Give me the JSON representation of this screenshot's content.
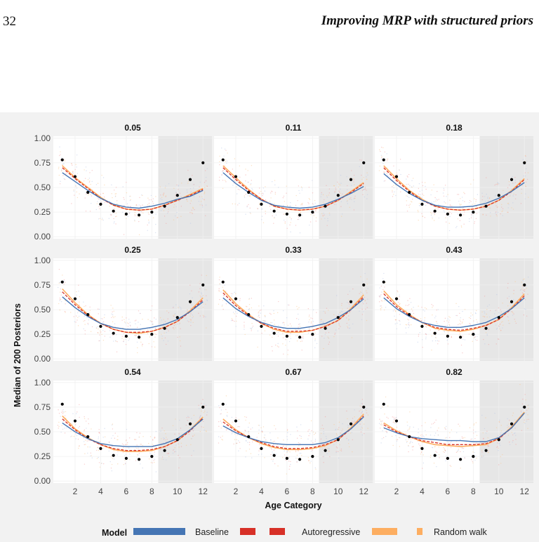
{
  "header": {
    "page_number": "32",
    "running_title": "Improving MRP with structured priors"
  },
  "figure": {
    "ylabel": "Median of 200 Posteriors",
    "xlabel": "Age Category",
    "legend_title": "Model"
  },
  "chart_data": {
    "type": "line",
    "panel_titles": [
      "0.05",
      "0.11",
      "0.18",
      "0.25",
      "0.33",
      "0.43",
      "0.54",
      "0.67",
      "0.82"
    ],
    "x": [
      1,
      2,
      3,
      4,
      5,
      6,
      7,
      8,
      9,
      10,
      11,
      12
    ],
    "xlim": [
      0.3,
      12.7
    ],
    "ylim": [
      -0.02,
      1.02
    ],
    "x_ticks": [
      2,
      4,
      6,
      8,
      10,
      12
    ],
    "y_ticks": [
      "0.00",
      "0.25",
      "0.50",
      "0.75",
      "1.00"
    ],
    "shaded_x_range": [
      8.5,
      12.7
    ],
    "truth_points": [
      0.78,
      0.61,
      0.45,
      0.33,
      0.26,
      0.23,
      0.22,
      0.25,
      0.31,
      0.42,
      0.58,
      0.75
    ],
    "series_colors": {
      "Baseline": "#4575b4",
      "Autoregressive": "#d73027",
      "Random walk": "#fdae61"
    },
    "legend_entries": [
      "Baseline",
      "Autoregressive",
      "Random walk"
    ],
    "panels": [
      {
        "title": "0.05",
        "baseline": [
          0.65,
          0.56,
          0.47,
          0.39,
          0.33,
          0.3,
          0.29,
          0.31,
          0.34,
          0.38,
          0.41,
          0.47
        ],
        "autoregressive": [
          0.7,
          0.59,
          0.49,
          0.39,
          0.32,
          0.28,
          0.27,
          0.28,
          0.32,
          0.37,
          0.42,
          0.48
        ],
        "random_walk": [
          0.72,
          0.6,
          0.5,
          0.4,
          0.32,
          0.28,
          0.27,
          0.28,
          0.32,
          0.37,
          0.43,
          0.49
        ]
      },
      {
        "title": "0.11",
        "baseline": [
          0.65,
          0.54,
          0.45,
          0.37,
          0.32,
          0.3,
          0.29,
          0.3,
          0.33,
          0.38,
          0.44,
          0.51
        ],
        "autoregressive": [
          0.7,
          0.58,
          0.47,
          0.38,
          0.31,
          0.28,
          0.27,
          0.28,
          0.31,
          0.37,
          0.45,
          0.54
        ],
        "random_walk": [
          0.72,
          0.6,
          0.48,
          0.38,
          0.31,
          0.28,
          0.27,
          0.28,
          0.31,
          0.37,
          0.46,
          0.55
        ]
      },
      {
        "title": "0.18",
        "baseline": [
          0.64,
          0.53,
          0.44,
          0.37,
          0.32,
          0.3,
          0.3,
          0.31,
          0.34,
          0.39,
          0.46,
          0.55
        ],
        "autoregressive": [
          0.7,
          0.57,
          0.46,
          0.37,
          0.31,
          0.28,
          0.27,
          0.28,
          0.31,
          0.37,
          0.46,
          0.58
        ],
        "random_walk": [
          0.72,
          0.59,
          0.47,
          0.38,
          0.31,
          0.28,
          0.27,
          0.28,
          0.31,
          0.37,
          0.47,
          0.59
        ]
      },
      {
        "title": "0.25",
        "baseline": [
          0.63,
          0.52,
          0.43,
          0.36,
          0.32,
          0.3,
          0.3,
          0.32,
          0.35,
          0.4,
          0.48,
          0.58
        ],
        "autoregressive": [
          0.68,
          0.55,
          0.44,
          0.36,
          0.3,
          0.27,
          0.27,
          0.28,
          0.32,
          0.38,
          0.48,
          0.6
        ],
        "random_walk": [
          0.71,
          0.57,
          0.45,
          0.36,
          0.3,
          0.27,
          0.26,
          0.28,
          0.32,
          0.38,
          0.49,
          0.62
        ]
      },
      {
        "title": "0.33",
        "baseline": [
          0.62,
          0.51,
          0.43,
          0.37,
          0.33,
          0.31,
          0.31,
          0.33,
          0.36,
          0.42,
          0.5,
          0.61
        ],
        "autoregressive": [
          0.67,
          0.54,
          0.44,
          0.36,
          0.31,
          0.28,
          0.28,
          0.29,
          0.33,
          0.39,
          0.5,
          0.63
        ],
        "random_walk": [
          0.7,
          0.56,
          0.45,
          0.36,
          0.3,
          0.27,
          0.27,
          0.29,
          0.33,
          0.39,
          0.51,
          0.65
        ]
      },
      {
        "title": "0.43",
        "baseline": [
          0.62,
          0.51,
          0.43,
          0.37,
          0.34,
          0.32,
          0.32,
          0.34,
          0.37,
          0.43,
          0.51,
          0.62
        ],
        "autoregressive": [
          0.66,
          0.53,
          0.44,
          0.37,
          0.32,
          0.3,
          0.29,
          0.31,
          0.34,
          0.4,
          0.51,
          0.64
        ],
        "random_walk": [
          0.69,
          0.55,
          0.45,
          0.37,
          0.31,
          0.29,
          0.28,
          0.3,
          0.34,
          0.4,
          0.52,
          0.66
        ]
      },
      {
        "title": "0.54",
        "baseline": [
          0.59,
          0.5,
          0.43,
          0.38,
          0.36,
          0.35,
          0.35,
          0.35,
          0.38,
          0.43,
          0.52,
          0.63
        ],
        "autoregressive": [
          0.63,
          0.52,
          0.43,
          0.37,
          0.33,
          0.31,
          0.31,
          0.32,
          0.35,
          0.41,
          0.51,
          0.64
        ],
        "random_walk": [
          0.66,
          0.53,
          0.44,
          0.37,
          0.32,
          0.3,
          0.3,
          0.31,
          0.35,
          0.41,
          0.52,
          0.65
        ]
      },
      {
        "title": "0.67",
        "baseline": [
          0.56,
          0.49,
          0.44,
          0.4,
          0.38,
          0.37,
          0.37,
          0.37,
          0.39,
          0.44,
          0.53,
          0.65
        ],
        "autoregressive": [
          0.6,
          0.51,
          0.44,
          0.39,
          0.35,
          0.33,
          0.33,
          0.34,
          0.37,
          0.42,
          0.53,
          0.66
        ],
        "random_walk": [
          0.63,
          0.52,
          0.44,
          0.38,
          0.34,
          0.32,
          0.32,
          0.33,
          0.36,
          0.42,
          0.54,
          0.68
        ]
      },
      {
        "title": "0.82",
        "baseline": [
          0.54,
          0.49,
          0.45,
          0.43,
          0.42,
          0.41,
          0.41,
          0.4,
          0.4,
          0.44,
          0.54,
          0.69
        ],
        "autoregressive": [
          0.57,
          0.5,
          0.45,
          0.41,
          0.39,
          0.37,
          0.37,
          0.37,
          0.38,
          0.43,
          0.54,
          0.69
        ],
        "random_walk": [
          0.59,
          0.51,
          0.45,
          0.4,
          0.37,
          0.36,
          0.35,
          0.36,
          0.37,
          0.43,
          0.55,
          0.7
        ]
      }
    ]
  }
}
